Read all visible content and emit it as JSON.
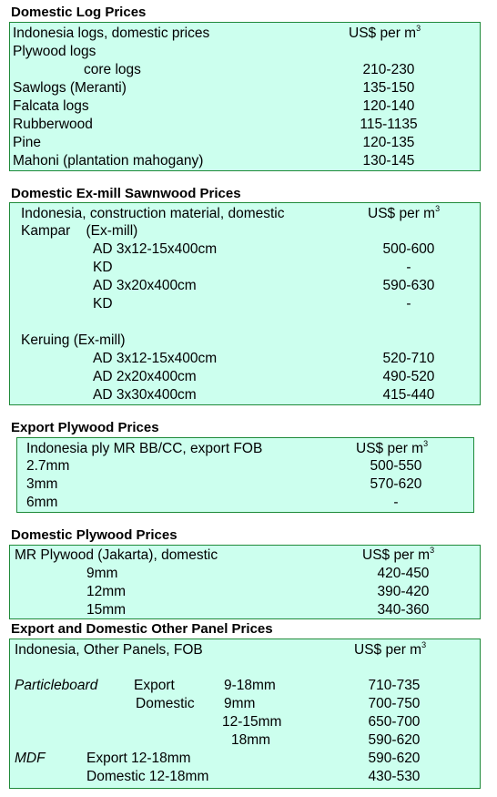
{
  "domestic_log": {
    "title": "Domestic Log Prices",
    "header": "Indonesia logs, domestic prices",
    "unit": "US$ per m",
    "unit_sup": "3",
    "group": "Plywood logs",
    "rows": [
      {
        "label": "core logs",
        "value": "210-230"
      },
      {
        "label": "Sawlogs (Meranti)",
        "value": "135-150"
      },
      {
        "label": "Falcata logs",
        "value": "120-140"
      },
      {
        "label": "Rubberwood",
        "value": "115-1135"
      },
      {
        "label": "Pine",
        "value": "120-135"
      },
      {
        "label": "Mahoni (plantation mahogany)",
        "value": "130-145"
      }
    ]
  },
  "sawnwood": {
    "title": "Domestic Ex-mill Sawnwood Prices",
    "header": "Indonesia, construction material, domestic",
    "unit": "US$ per m",
    "unit_sup": "3",
    "group1": "Kampar    (Ex-mill)",
    "rows1": [
      {
        "label": "AD 3x12-15x400cm",
        "value": "500-600"
      },
      {
        "label": "KD",
        "value": "-"
      },
      {
        "label": "AD 3x20x400cm",
        "value": "590-630"
      },
      {
        "label": "KD",
        "value": "-"
      }
    ],
    "group2": "Keruing (Ex-mill)",
    "rows2": [
      {
        "label": "AD 3x12-15x400cm",
        "value": "520-710"
      },
      {
        "label": "AD 2x20x400cm",
        "value": "490-520"
      },
      {
        "label": "AD 3x30x400cm",
        "value": "415-440"
      }
    ]
  },
  "export_plywood": {
    "title": "Export Plywood Prices",
    "header": "Indonesia ply MR BB/CC, export FOB",
    "unit": "US$ per m",
    "unit_sup": "3",
    "rows": [
      {
        "label": "2.7mm",
        "value": "500-550"
      },
      {
        "label": "3mm",
        "value": "570-620"
      },
      {
        "label": "6mm",
        "value": "-"
      }
    ]
  },
  "domestic_plywood": {
    "title": "Domestic Plywood Prices",
    "header": "MR Plywood (Jakarta), domestic",
    "unit": "US$ per m",
    "unit_sup": "3",
    "rows": [
      {
        "label": "9mm",
        "value": "420-450"
      },
      {
        "label": "12mm",
        "value": "390-420"
      },
      {
        "label": "15mm",
        "value": "340-360"
      }
    ]
  },
  "other_panel": {
    "title": "Export and Domestic Other Panel Prices",
    "header": "Indonesia, Other Panels, FOB",
    "unit": "US$ per m",
    "unit_sup": "3",
    "particleboard": "Particleboard",
    "export": "Export",
    "domestic": "Domestic",
    "pb_rows": [
      {
        "size": "9-18mm",
        "value": "710-735"
      },
      {
        "size": "9mm",
        "value": "700-750"
      },
      {
        "size": "12-15mm",
        "value": "650-700"
      },
      {
        "size": "18mm",
        "value": "590-620"
      }
    ],
    "mdf": "MDF",
    "mdf_rows": [
      {
        "label": "Export 12-18mm",
        "value": "590-620"
      },
      {
        "label": "Domestic 12-18mm",
        "value": "430-530"
      }
    ]
  }
}
